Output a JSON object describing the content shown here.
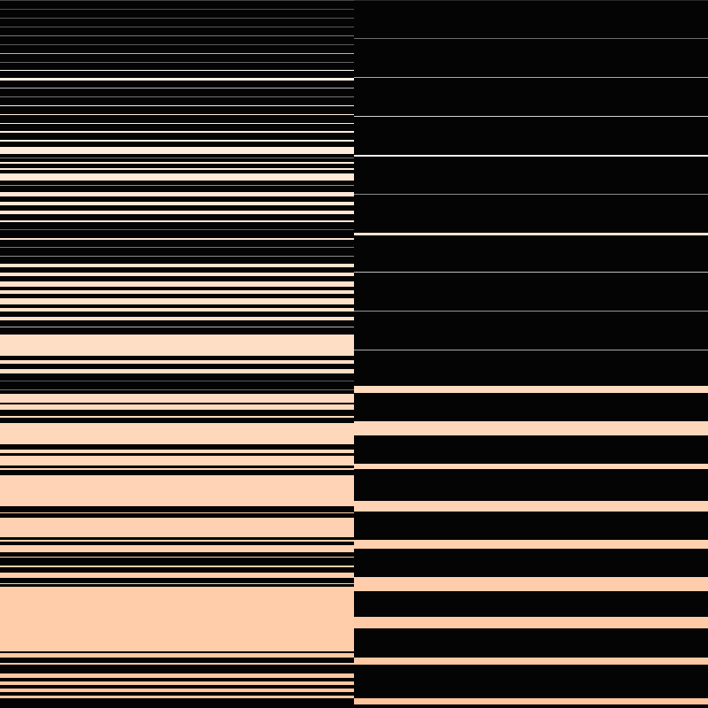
{
  "colors": {
    "background": "#040404",
    "stripe_light": "#fff4ea",
    "stripe_peach": "#ffc8a2",
    "stripe_gray": "#6a6a6a"
  },
  "panels": [
    {
      "name": "left-stripe-panel"
    },
    {
      "name": "right-stripe-panel"
    }
  ]
}
